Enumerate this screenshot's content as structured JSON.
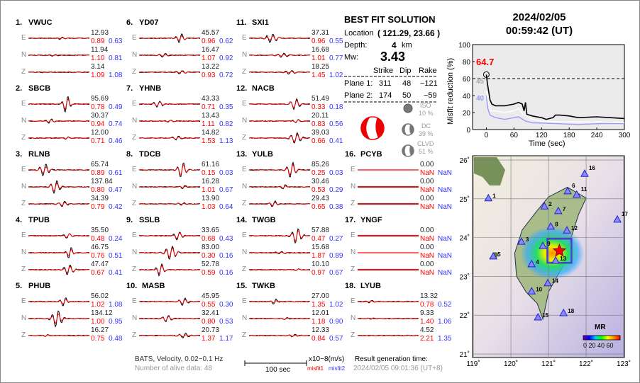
{
  "stations": [
    {
      "no": "1.",
      "name": "VWUC",
      "ch": [
        [
          "12.93",
          "0.89",
          "0.63"
        ],
        [
          "11.94",
          "1.10",
          "0.81"
        ],
        [
          "3.14",
          "1.09",
          "1.08"
        ]
      ]
    },
    {
      "no": "2.",
      "name": "SBCB",
      "ch": [
        [
          "95.69",
          "0.78",
          "0.49"
        ],
        [
          "30.37",
          "0.94",
          "0.74"
        ],
        [
          "12.00",
          "0.71",
          "0.46"
        ]
      ]
    },
    {
      "no": "3.",
      "name": "RLNB",
      "ch": [
        [
          "65.74",
          "0.89",
          "0.61"
        ],
        [
          "137.84",
          "0.80",
          "0.47"
        ],
        [
          "34.39",
          "0.79",
          "0.42"
        ]
      ]
    },
    {
      "no": "4.",
      "name": "TPUB",
      "ch": [
        [
          "35.50",
          "0.48",
          "0.24"
        ],
        [
          "46.75",
          "0.76",
          "0.51"
        ],
        [
          "47.47",
          "0.67",
          "0.41"
        ]
      ]
    },
    {
      "no": "5.",
      "name": "PHUB",
      "ch": [
        [
          "56.02",
          "1.02",
          "1.08"
        ],
        [
          "134.12",
          "1.00",
          "0.95"
        ],
        [
          "16.27",
          "0.75",
          "0.48"
        ]
      ]
    },
    {
      "no": "6.",
      "name": "YD07",
      "ch": [
        [
          "45.57",
          "0.96",
          "0.62"
        ],
        [
          "16.47",
          "1.07",
          "0.92"
        ],
        [
          "13.22",
          "0.93",
          "0.72"
        ]
      ]
    },
    {
      "no": "7.",
      "name": "YHNB",
      "ch": [
        [
          "43.33",
          "0.71",
          "0.35"
        ],
        [
          "13.43",
          "1.11",
          "0.82"
        ],
        [
          "14.82",
          "1.53",
          "1.13"
        ]
      ]
    },
    {
      "no": "8.",
      "name": "TDCB",
      "ch": [
        [
          "61.16",
          "0.15",
          "0.03"
        ],
        [
          "16.28",
          "1.01",
          "0.67"
        ],
        [
          "13.90",
          "1.03",
          "0.64"
        ]
      ]
    },
    {
      "no": "9.",
      "name": "SSLB",
      "ch": [
        [
          "33.65",
          "0.68",
          "0.43"
        ],
        [
          "83.00",
          "0.30",
          "0.16"
        ],
        [
          "52.78",
          "0.59",
          "0.16"
        ]
      ]
    },
    {
      "no": "10.",
      "name": "MASB",
      "ch": [
        [
          "45.95",
          "0.55",
          "0.30"
        ],
        [
          "32.41",
          "0.80",
          "0.53"
        ],
        [
          "20.73",
          "1.37",
          "1.17"
        ]
      ]
    },
    {
      "no": "11.",
      "name": "SXI1",
      "ch": [
        [
          "37.31",
          "0.96",
          "0.55"
        ],
        [
          "16.68",
          "1.01",
          "0.77"
        ],
        [
          "18.25",
          "1.45",
          "1.02"
        ]
      ]
    },
    {
      "no": "12.",
      "name": "NACB",
      "ch": [
        [
          "51.49",
          "0.33",
          "0.18"
        ],
        [
          "20.11",
          "0.83",
          "0.56"
        ],
        [
          "39.03",
          "0.66",
          "0.41"
        ]
      ]
    },
    {
      "no": "13.",
      "name": "YULB",
      "ch": [
        [
          "85.26",
          "0.25",
          "0.03"
        ],
        [
          "30.46",
          "0.53",
          "0.29"
        ],
        [
          "29.43",
          "0.65",
          "0.38"
        ]
      ]
    },
    {
      "no": "14.",
      "name": "TWGB",
      "ch": [
        [
          "57.88",
          "0.47",
          "0.27"
        ],
        [
          "15.68",
          "1.87",
          "0.89"
        ],
        [
          "10.10",
          "0.97",
          "0.67"
        ]
      ]
    },
    {
      "no": "15.",
      "name": "TWKB",
      "ch": [
        [
          "27.00",
          "1.35",
          "1.02"
        ],
        [
          "12.01",
          "1.18",
          "0.90"
        ],
        [
          "12.33",
          "0.84",
          "0.57"
        ]
      ]
    },
    {
      "no": "16.",
      "name": "PCYB",
      "ch": [
        [
          "0.00",
          "NaN",
          "NaN"
        ],
        [
          "0.00",
          "NaN",
          "NaN"
        ],
        [
          "0.00",
          "NaN",
          "NaN"
        ]
      ]
    },
    {
      "no": "17.",
      "name": "YNGF",
      "ch": [
        [
          "0.00",
          "NaN",
          "NaN"
        ],
        [
          "0.00",
          "NaN",
          "NaN"
        ],
        [
          "0.00",
          "NaN",
          "NaN"
        ]
      ]
    },
    {
      "no": "18.",
      "name": "LYUB",
      "ch": [
        [
          "13.32",
          "0.78",
          "0.52"
        ],
        [
          "9.33",
          "1.40",
          "1.06"
        ],
        [
          "4.52",
          "2.21",
          "1.35"
        ]
      ]
    }
  ],
  "channels": [
    "E",
    "N",
    "Z"
  ],
  "solution": {
    "title": "BEST FIT SOLUTION",
    "location_label": "Location",
    "location_value": "( 121.29,  23.66 )",
    "depth_label": "Depth:",
    "depth_value": "4",
    "depth_unit": "km",
    "mw_label": "Mw:",
    "mw_value": "3.43",
    "headers": [
      "Strike",
      "Dip",
      "Rake"
    ],
    "planes": [
      {
        "label": "Plane 1:",
        "strike": "311",
        "dip": "48",
        "rake": "−121"
      },
      {
        "label": "Plane 2:",
        "strike": "174",
        "dip": "50",
        "rake": "−59"
      }
    ],
    "components": [
      {
        "name": "ISO",
        "pct": "10 %"
      },
      {
        "name": "DC",
        "pct": "39 %"
      },
      {
        "name": "CLVD",
        "pct": "51 %"
      }
    ]
  },
  "datetime": {
    "date": "2024/02/05",
    "time": "00:59:42  (UT)"
  },
  "footer": {
    "network": "BATS, Velocity, 0.02−0.1 Hz",
    "alive": "Number of alive data: 48",
    "scale": "100 sec",
    "unit": "x10−8(m/s)",
    "misfit1": "misfit1",
    "misfit2": "misfit2",
    "gen_label": "Result generation time:",
    "gen_time": "2024/02/05 09:01:36 (UT+8)"
  },
  "colors": {
    "synthetic": "#ff0000",
    "observed": "#000000",
    "misfit1": "#ff0000",
    "misfit2": "#3333ff",
    "chart_bg": "#ebebeb"
  },
  "chart_data": {
    "type": "line",
    "xlabel": "Time (sec)",
    "ylabel": "Misfit reduction (%)",
    "xlim": [
      -30,
      300
    ],
    "ylim": [
      0,
      100
    ],
    "xticks": [
      "0",
      "60",
      "120",
      "180",
      "240",
      "300"
    ],
    "yticks": [
      "0",
      "20",
      "40",
      "60",
      "80",
      "100"
    ],
    "threshold": 60,
    "peak": {
      "x": 0,
      "y": 64.7,
      "label": "64.7"
    },
    "annotations": [
      {
        "label": "45",
        "y": 45,
        "color": "#aaaaaa"
      },
      {
        "label": "40",
        "y": 40,
        "color": "#9999ff"
      }
    ],
    "series": [
      {
        "color": "#000000",
        "x": [
          0,
          2,
          5,
          8,
          12,
          20,
          40,
          60,
          70,
          78,
          82,
          85,
          88,
          100,
          120,
          130,
          145,
          150,
          160,
          180,
          200,
          240,
          270,
          300
        ],
        "y": [
          64.7,
          55,
          45,
          35,
          30,
          28,
          28,
          30,
          32,
          30,
          22,
          32,
          18,
          16,
          14,
          12,
          14,
          17,
          17,
          16,
          14,
          15,
          14,
          13
        ]
      },
      {
        "color": "#ffffff",
        "x": [
          0,
          5,
          10,
          20,
          40,
          60,
          70,
          80,
          100,
          120,
          150,
          200,
          250,
          300
        ],
        "y": [
          45,
          30,
          22,
          22,
          20,
          22,
          25,
          18,
          12,
          10,
          9,
          9,
          9,
          8
        ]
      },
      {
        "color": "#9999ff",
        "x": [
          0,
          3,
          8,
          20,
          40,
          60,
          70,
          85,
          100,
          150,
          200,
          250,
          300
        ],
        "y": [
          40,
          25,
          17,
          14,
          12,
          14,
          15,
          10,
          8,
          7,
          6,
          7,
          7
        ]
      }
    ]
  },
  "map": {
    "lon_ticks": [
      "119˚",
      "120˚",
      "121˚",
      "122˚",
      "123˚"
    ],
    "lat_ticks": [
      "21˚",
      "22˚",
      "23˚",
      "24˚",
      "25˚",
      "26˚"
    ],
    "epicenter": {
      "lon": 121.29,
      "lat": 23.66
    },
    "stations": [
      {
        "id": "1",
        "lon": 119.4,
        "lat": 25.02
      },
      {
        "id": "2",
        "lon": 120.89,
        "lat": 24.81
      },
      {
        "id": "3",
        "lon": 120.28,
        "lat": 23.9
      },
      {
        "id": "4",
        "lon": 120.55,
        "lat": 23.32
      },
      {
        "id": "5",
        "lon": 119.53,
        "lat": 23.52
      },
      {
        "id": "6",
        "lon": 121.51,
        "lat": 25.2
      },
      {
        "id": "7",
        "lon": 121.26,
        "lat": 24.69
      },
      {
        "id": "8",
        "lon": 121.06,
        "lat": 24.29
      },
      {
        "id": "9",
        "lon": 120.85,
        "lat": 23.79
      },
      {
        "id": "10",
        "lon": 120.55,
        "lat": 22.62
      },
      {
        "id": "11",
        "lon": 121.75,
        "lat": 25.11
      },
      {
        "id": "12",
        "lon": 121.49,
        "lat": 24.19
      },
      {
        "id": "13",
        "lon": 121.19,
        "lat": 23.41
      },
      {
        "id": "14",
        "lon": 120.98,
        "lat": 22.83
      },
      {
        "id": "15",
        "lon": 120.72,
        "lat": 21.95
      },
      {
        "id": "16",
        "lon": 121.96,
        "lat": 25.65
      },
      {
        "id": "17",
        "lon": 122.83,
        "lat": 24.47
      },
      {
        "id": "18",
        "lon": 121.4,
        "lat": 22.06
      }
    ],
    "legend_title": "MR",
    "legend_ticks": "0 20 40 60"
  }
}
